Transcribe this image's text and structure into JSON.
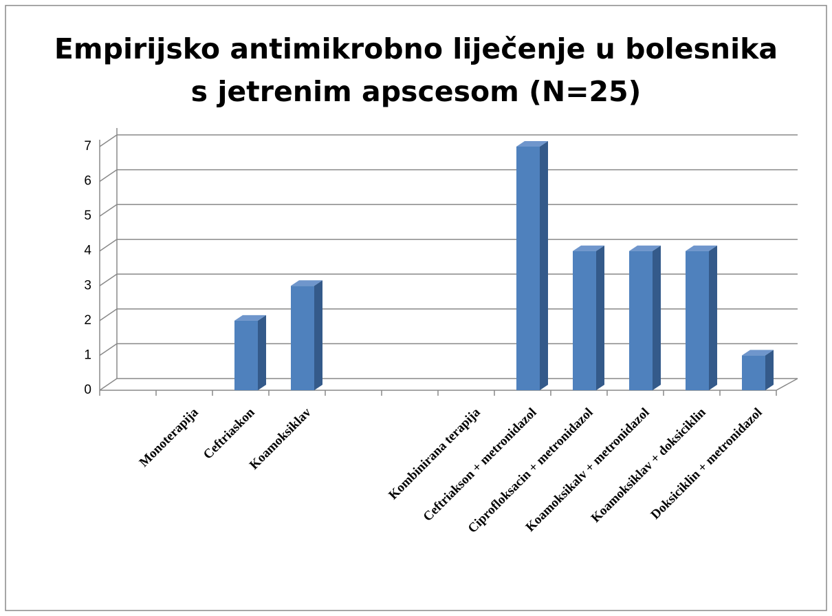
{
  "chart_data": {
    "type": "bar3d",
    "title": "Empirijsko antimikrobno liječenje u bolesnika s jetrenim apscesom (N=25)",
    "categories": [
      null,
      "Monoterapija",
      "Ceftriaskon",
      "Koamoksiklav",
      null,
      null,
      "Kombinirana terapija",
      "Ceftriakson + metronidazol",
      "Ciprofloksacin + metronidazol",
      "Koamoksikalv + metronidazol",
      "Koamoksiklav + doksiciklin",
      "Doksiciklin + metronidazol"
    ],
    "values": [
      null,
      null,
      2,
      3,
      null,
      null,
      null,
      7,
      4,
      4,
      4,
      1
    ],
    "color": "#4f81bd",
    "ylim": [
      0,
      7
    ],
    "yticks": [
      0,
      1,
      2,
      3,
      4,
      5,
      6,
      7
    ],
    "grid": true
  }
}
